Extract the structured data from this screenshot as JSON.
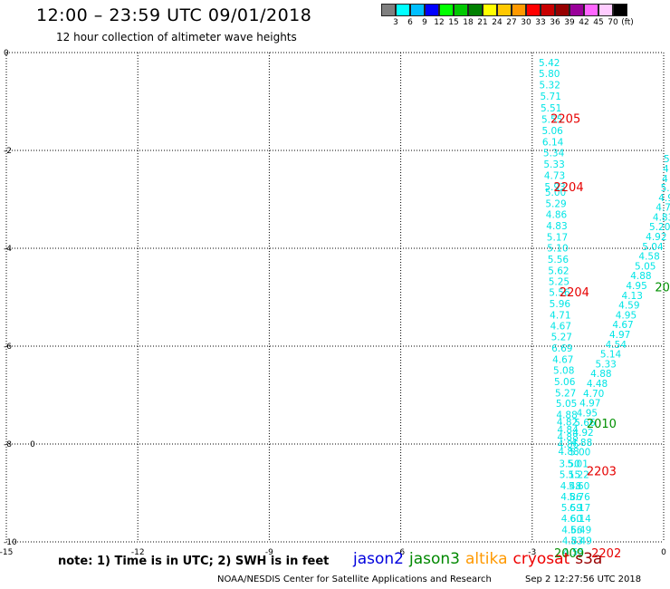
{
  "header": {
    "title": "12:00 – 23:59 UTC 09/01/2018",
    "subtitle": "12 hour collection of altimeter wave heights"
  },
  "legend": {
    "colors": [
      "#7f7f7f",
      "#00ffff",
      "#00bfff",
      "#0000ff",
      "#00ff00",
      "#00c800",
      "#008000",
      "#ffff00",
      "#ffc800",
      "#ff9900",
      "#ff0000",
      "#c80000",
      "#960000",
      "#990099",
      "#ff66ff",
      "#ffccff",
      "#000000"
    ],
    "labels": [
      "3",
      "6",
      "9",
      "12",
      "15",
      "18",
      "21",
      "24",
      "27",
      "30",
      "33",
      "36",
      "39",
      "42",
      "45",
      "70",
      "(ft)"
    ]
  },
  "axes": {
    "x_ticks": [
      "-15",
      "-12",
      "-9",
      "-6",
      "-3",
      "0"
    ],
    "y_ticks": [
      "0",
      "-2",
      "-4",
      "-6",
      "-8",
      "-10"
    ]
  },
  "tracks": [
    {
      "name": "track-a",
      "color": "#00e5e5",
      "points": [
        {
          "lon": -2.85,
          "lat": -0.2,
          "v": "5.42"
        },
        {
          "lon": -2.85,
          "lat": -0.43,
          "v": "5.80"
        },
        {
          "lon": -2.84,
          "lat": -0.66,
          "v": "5.32"
        },
        {
          "lon": -2.82,
          "lat": -0.89,
          "v": "5.71"
        },
        {
          "lon": -2.81,
          "lat": -1.13,
          "v": "5.51"
        },
        {
          "lon": -2.79,
          "lat": -1.36,
          "v": "5.55"
        },
        {
          "lon": -2.78,
          "lat": -1.59,
          "v": "5.06"
        },
        {
          "lon": -2.77,
          "lat": -1.82,
          "v": "6.14"
        },
        {
          "lon": -2.75,
          "lat": -2.05,
          "v": "5.34"
        },
        {
          "lon": -2.74,
          "lat": -2.28,
          "v": "5.33"
        },
        {
          "lon": -2.73,
          "lat": -2.51,
          "v": "4.73"
        },
        {
          "lon": -2.72,
          "lat": -2.74,
          "v": "5.93"
        },
        {
          "lon": -2.71,
          "lat": -2.85,
          "v": "5.00"
        },
        {
          "lon": -2.7,
          "lat": -3.08,
          "v": "5.29"
        },
        {
          "lon": -2.69,
          "lat": -3.31,
          "v": "4.86"
        },
        {
          "lon": -2.68,
          "lat": -3.54,
          "v": "4.83"
        },
        {
          "lon": -2.67,
          "lat": -3.77,
          "v": "5.17"
        },
        {
          "lon": -2.66,
          "lat": -3.99,
          "v": "5.10"
        },
        {
          "lon": -2.65,
          "lat": -4.22,
          "v": "5.56"
        },
        {
          "lon": -2.64,
          "lat": -4.45,
          "v": "5.62"
        },
        {
          "lon": -2.63,
          "lat": -4.68,
          "v": "5.25"
        },
        {
          "lon": -2.62,
          "lat": -4.9,
          "v": "5.56"
        },
        {
          "lon": -2.61,
          "lat": -5.13,
          "v": "5.96"
        },
        {
          "lon": -2.6,
          "lat": -5.36,
          "v": "4.71"
        },
        {
          "lon": -2.59,
          "lat": -5.58,
          "v": "4.67"
        },
        {
          "lon": -2.57,
          "lat": -5.81,
          "v": "5.27"
        },
        {
          "lon": -2.56,
          "lat": -6.04,
          "v": "6.69"
        },
        {
          "lon": -2.54,
          "lat": -6.27,
          "v": "4.67"
        },
        {
          "lon": -2.52,
          "lat": -6.49,
          "v": "5.08"
        },
        {
          "lon": -2.5,
          "lat": -6.72,
          "v": "5.06"
        },
        {
          "lon": -2.48,
          "lat": -6.95,
          "v": "5.27"
        },
        {
          "lon": -2.46,
          "lat": -7.17,
          "v": "5.05"
        },
        {
          "lon": -2.45,
          "lat": -7.4,
          "v": "4.88"
        },
        {
          "lon": -2.44,
          "lat": -7.55,
          "v": "4.82"
        },
        {
          "lon": -2.43,
          "lat": -7.7,
          "v": "4.84"
        },
        {
          "lon": -2.43,
          "lat": -7.85,
          "v": "4.88"
        },
        {
          "lon": -2.42,
          "lat": -8.0,
          "v": "4.86"
        },
        {
          "lon": -2.41,
          "lat": -8.15,
          "v": "4.88"
        },
        {
          "lon": -2.39,
          "lat": -8.4,
          "v": "3.50"
        },
        {
          "lon": -2.38,
          "lat": -8.62,
          "v": "5.15"
        },
        {
          "lon": -2.36,
          "lat": -8.85,
          "v": "4.48"
        },
        {
          "lon": -2.35,
          "lat": -9.07,
          "v": "4.86"
        },
        {
          "lon": -2.34,
          "lat": -9.3,
          "v": "5.59"
        },
        {
          "lon": -2.34,
          "lat": -9.52,
          "v": "4.60"
        },
        {
          "lon": -2.33,
          "lat": -9.75,
          "v": "4.66"
        },
        {
          "lon": -2.32,
          "lat": -9.97,
          "v": "4.83"
        },
        {
          "lon": -2.3,
          "lat": -10.2,
          "v": "4.55"
        }
      ]
    },
    {
      "name": "track-b",
      "color": "#00e5e5",
      "points": [
        {
          "lon": 0.0,
          "lat": -2.17,
          "v": "5"
        },
        {
          "lon": -0.02,
          "lat": -2.37,
          "v": "4"
        },
        {
          "lon": -0.04,
          "lat": -2.57,
          "v": "4"
        },
        {
          "lon": -0.07,
          "lat": -2.76,
          "v": "5.0"
        },
        {
          "lon": -0.12,
          "lat": -2.96,
          "v": "4.9"
        },
        {
          "lon": -0.18,
          "lat": -3.16,
          "v": "4.72"
        },
        {
          "lon": -0.25,
          "lat": -3.36,
          "v": "4.83"
        },
        {
          "lon": -0.33,
          "lat": -3.56,
          "v": "5.20"
        },
        {
          "lon": -0.41,
          "lat": -3.76,
          "v": "4.92"
        },
        {
          "lon": -0.49,
          "lat": -3.96,
          "v": "5.04"
        },
        {
          "lon": -0.57,
          "lat": -4.16,
          "v": "4.58"
        },
        {
          "lon": -0.66,
          "lat": -4.36,
          "v": "5.05"
        },
        {
          "lon": -0.76,
          "lat": -4.56,
          "v": "4.88"
        },
        {
          "lon": -0.86,
          "lat": -4.76,
          "v": "4.95"
        },
        {
          "lon": -0.96,
          "lat": -4.96,
          "v": "4.13"
        },
        {
          "lon": -1.03,
          "lat": -5.16,
          "v": "4.59"
        },
        {
          "lon": -1.1,
          "lat": -5.36,
          "v": "4.95"
        },
        {
          "lon": -1.17,
          "lat": -5.56,
          "v": "4.67"
        },
        {
          "lon": -1.24,
          "lat": -5.76,
          "v": "4.97"
        },
        {
          "lon": -1.33,
          "lat": -5.96,
          "v": "4.54"
        },
        {
          "lon": -1.45,
          "lat": -6.16,
          "v": "5.14"
        },
        {
          "lon": -1.56,
          "lat": -6.36,
          "v": "5.33"
        },
        {
          "lon": -1.67,
          "lat": -6.56,
          "v": "4.88"
        },
        {
          "lon": -1.76,
          "lat": -6.76,
          "v": "4.48"
        },
        {
          "lon": -1.84,
          "lat": -6.96,
          "v": "4.70"
        },
        {
          "lon": -1.92,
          "lat": -7.16,
          "v": "4.97"
        },
        {
          "lon": -1.99,
          "lat": -7.36,
          "v": "4.95"
        },
        {
          "lon": -2.04,
          "lat": -7.56,
          "v": "5.66"
        },
        {
          "lon": -2.08,
          "lat": -7.76,
          "v": "4.92"
        },
        {
          "lon": -2.11,
          "lat": -7.96,
          "v": "4.88"
        },
        {
          "lon": -2.15,
          "lat": -8.16,
          "v": "5.00"
        },
        {
          "lon": -2.2,
          "lat": -8.4,
          "v": "5.01"
        },
        {
          "lon": -2.18,
          "lat": -8.62,
          "v": "5.22"
        },
        {
          "lon": -2.17,
          "lat": -8.85,
          "v": "5.60"
        },
        {
          "lon": -2.16,
          "lat": -9.07,
          "v": "5.76"
        },
        {
          "lon": -2.15,
          "lat": -9.3,
          "v": "6.17"
        },
        {
          "lon": -2.14,
          "lat": -9.52,
          "v": "6.14"
        },
        {
          "lon": -2.13,
          "lat": -9.75,
          "v": "5.49"
        },
        {
          "lon": -2.12,
          "lat": -9.97,
          "v": "5.49"
        }
      ]
    }
  ],
  "pass_labels": [
    {
      "lon": -2.58,
      "lat": -1.34,
      "v": "2205",
      "color": "#e60000"
    },
    {
      "lon": -2.51,
      "lat": -2.74,
      "v": "2204",
      "color": "#e60000"
    },
    {
      "lon": -2.38,
      "lat": -4.89,
      "v": "2204",
      "color": "#e60000"
    },
    {
      "lon": -0.2,
      "lat": -4.79,
      "v": "20",
      "color": "#009000"
    },
    {
      "lon": -1.76,
      "lat": -7.57,
      "v": "2010",
      "color": "#009000"
    },
    {
      "lon": -1.76,
      "lat": -8.55,
      "v": "2203",
      "color": "#e60000"
    },
    {
      "lon": -2.5,
      "lat": -10.22,
      "v": "2009",
      "color": "#009000"
    },
    {
      "lon": -1.65,
      "lat": -10.22,
      "v": "2202",
      "color": "#e60000"
    }
  ],
  "small_marks": [
    {
      "lon": -14.46,
      "lat": -8.0,
      "v": "0"
    }
  ],
  "footer": {
    "note": "note: 1) Time is in UTC; 2) SWH is in feet",
    "satellites": [
      {
        "name": "jason2",
        "color": "#0000dd"
      },
      {
        "name": "jason3",
        "color": "#008800"
      },
      {
        "name": "altika",
        "color": "#ff9900"
      },
      {
        "name": "cryosat",
        "color": "#ee0000"
      },
      {
        "name": "s3a",
        "color": "#990000"
      }
    ],
    "credit": "NOAA/NESDIS Center for Satellite Applications and Research",
    "timestamp": "Sep  2 12:27:56 UTC 2018"
  }
}
